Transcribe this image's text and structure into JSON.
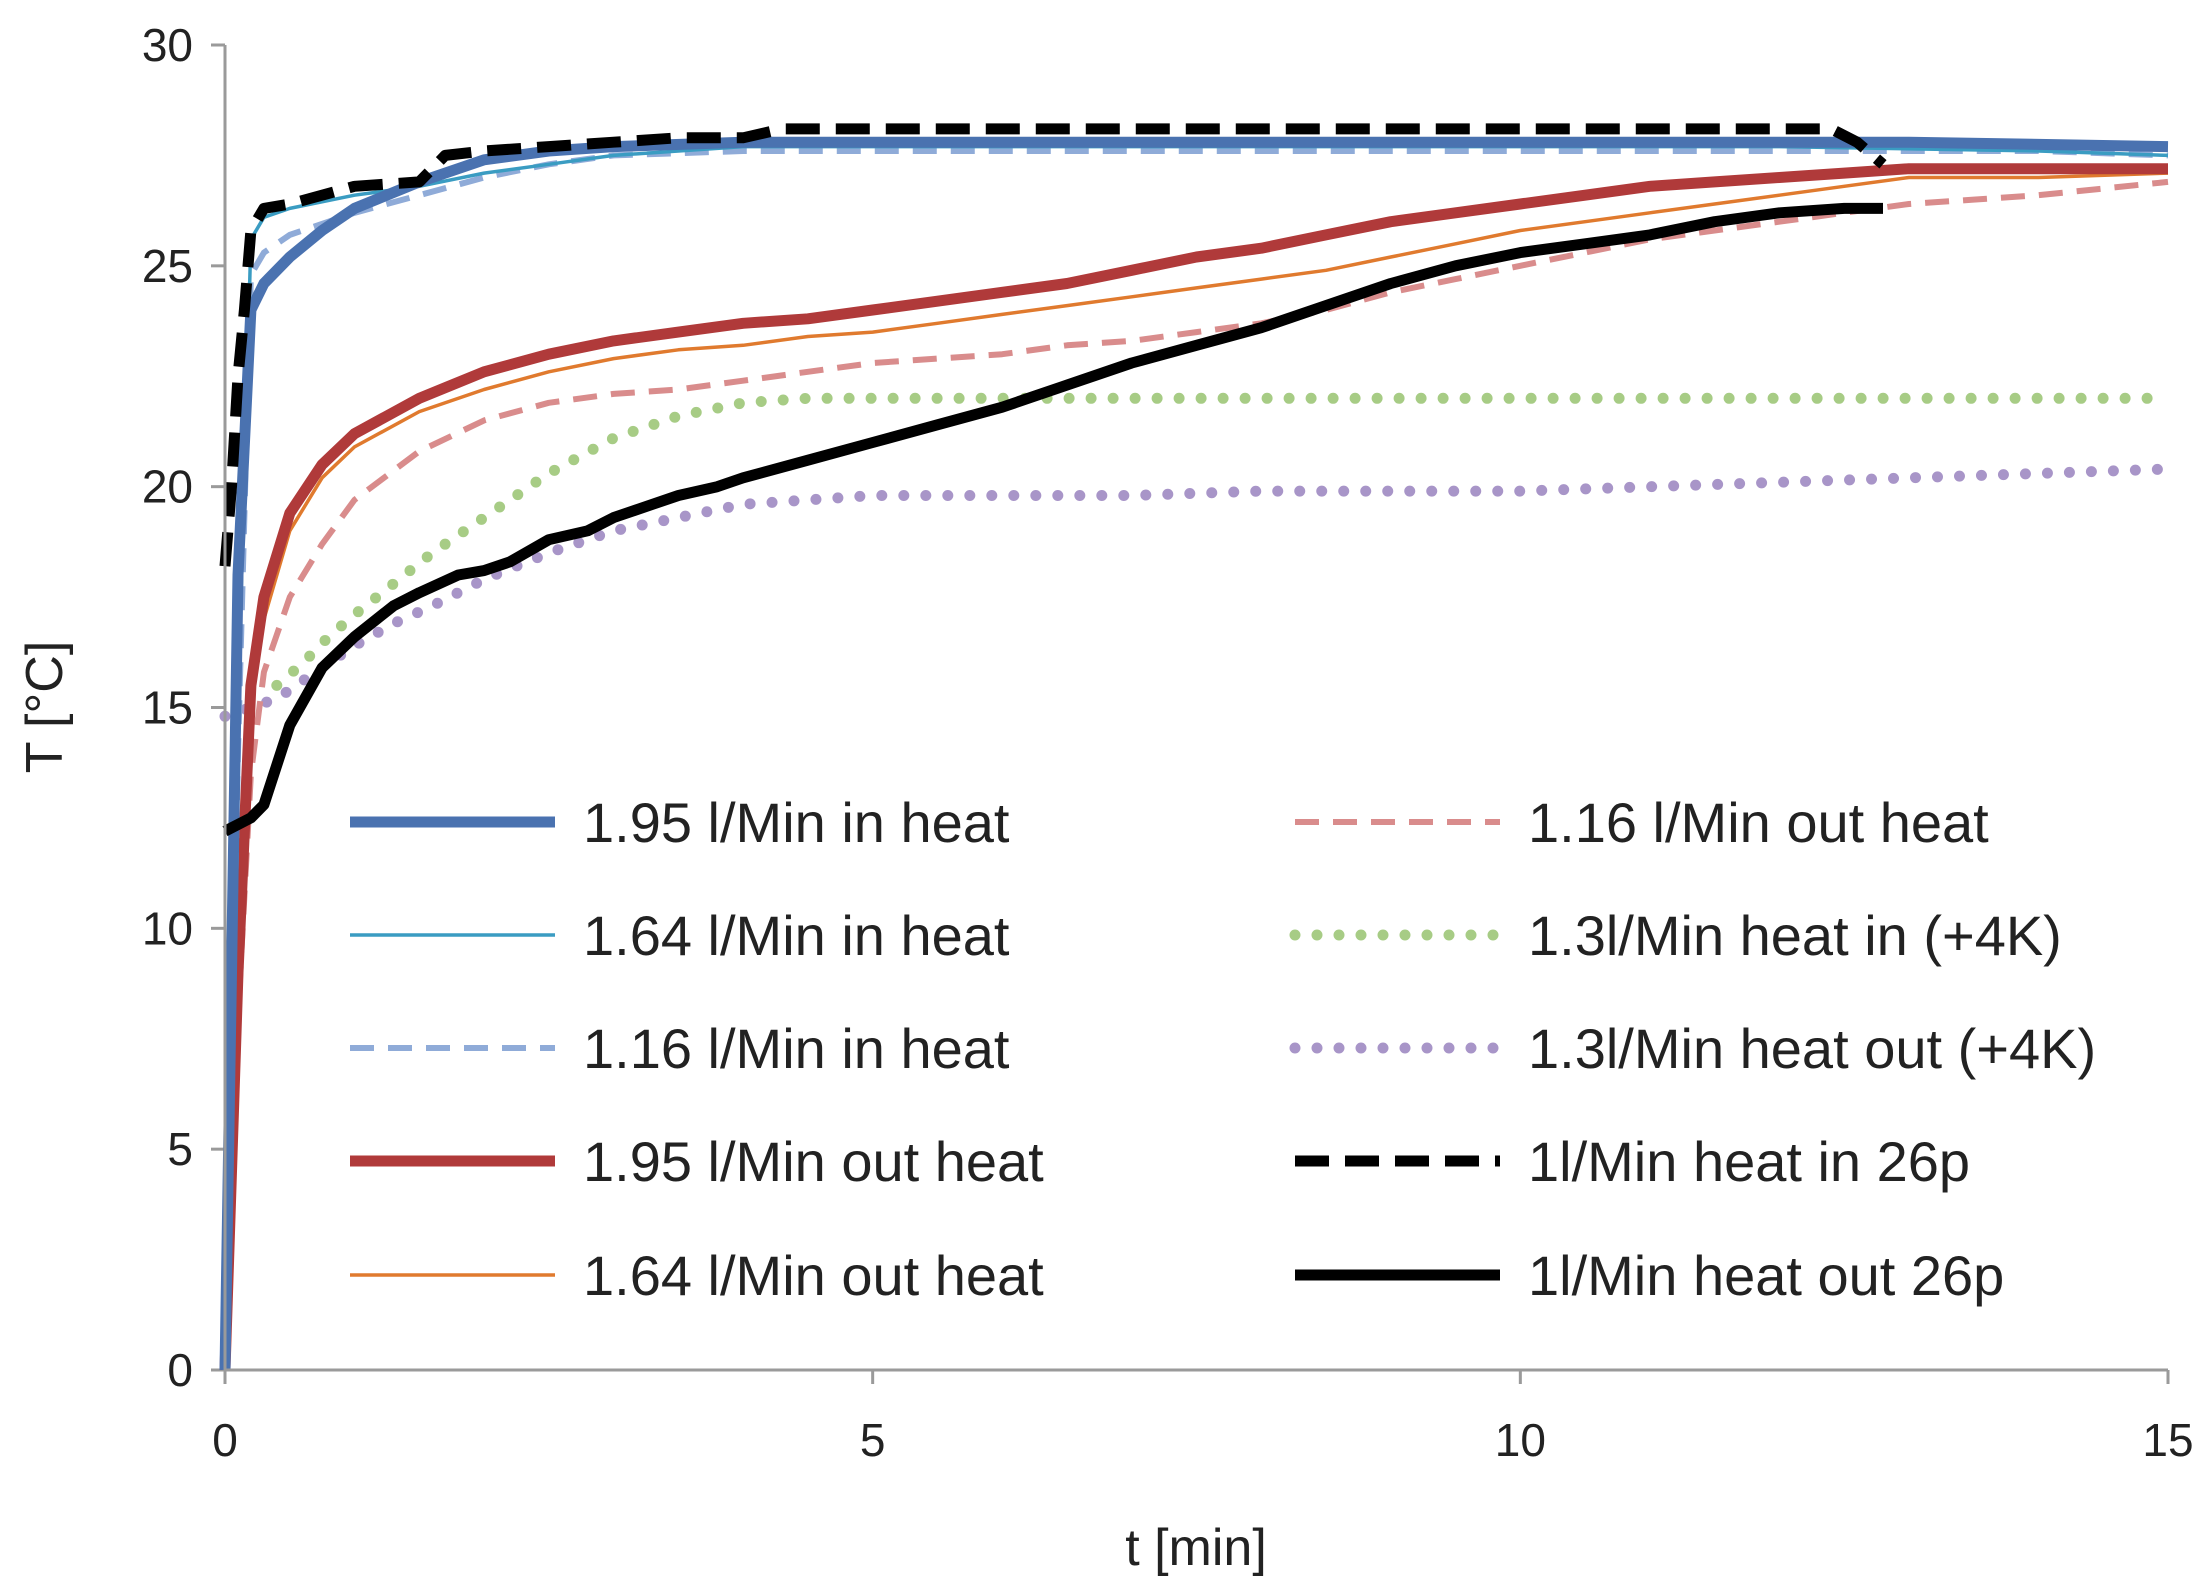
{
  "chart_data": {
    "type": "line",
    "title": "",
    "xlabel": "t [min]",
    "ylabel": "T [°C]",
    "xlim": [
      0,
      15
    ],
    "ylim": [
      0,
      30
    ],
    "xticks": [
      0,
      5,
      10,
      15
    ],
    "yticks": [
      0,
      5,
      10,
      15,
      20,
      25,
      30
    ],
    "xtick_labels": [
      "0",
      "5",
      "10",
      "15"
    ],
    "ytick_labels": [
      "0",
      "5",
      "10",
      "15",
      "20",
      "25",
      "30"
    ],
    "grid": false,
    "legend_position": "lower-right, two columns",
    "series": [
      {
        "name": "1.95 l/Min in heat",
        "color": "#4a72b0",
        "style": "solid",
        "weight": "heavy",
        "x": [
          0,
          0.1,
          0.2,
          0.3,
          0.5,
          0.75,
          1.0,
          1.5,
          2.0,
          2.5,
          3.0,
          4.0,
          5.0,
          6.0,
          8.0,
          10.0,
          12.0,
          13.0,
          15.0
        ],
        "y": [
          0,
          18,
          24,
          24.6,
          25.2,
          25.8,
          26.3,
          26.9,
          27.4,
          27.6,
          27.7,
          27.8,
          27.8,
          27.8,
          27.8,
          27.8,
          27.8,
          27.8,
          27.7
        ]
      },
      {
        "name": "1.64 l/Min in heat",
        "color": "#3a9cc2",
        "style": "solid",
        "weight": "thin",
        "x": [
          0,
          0.1,
          0.2,
          0.3,
          0.5,
          1.0,
          1.5,
          2.0,
          2.5,
          3.0,
          3.5,
          4.0,
          6.0,
          8.0,
          10.0,
          12.0,
          14.0,
          15.0
        ],
        "y": [
          0,
          15,
          25.6,
          26.1,
          26.3,
          26.6,
          26.8,
          27.1,
          27.3,
          27.5,
          27.6,
          27.7,
          27.7,
          27.7,
          27.7,
          27.7,
          27.6,
          27.5
        ]
      },
      {
        "name": "1.16 l/Min in heat",
        "color": "#8fabd8",
        "style": "dashed",
        "weight": "medium",
        "x": [
          0,
          0.1,
          0.2,
          0.3,
          0.5,
          1.0,
          1.5,
          2.0,
          2.5,
          3.0,
          4.0,
          6.0,
          8.0,
          10.0,
          12.0,
          14.0,
          15.0
        ],
        "y": [
          0,
          14,
          24.8,
          25.3,
          25.7,
          26.2,
          26.6,
          27.0,
          27.3,
          27.5,
          27.6,
          27.6,
          27.6,
          27.6,
          27.6,
          27.6,
          27.5
        ]
      },
      {
        "name": "1.95 l/Min out heat",
        "color": "#b03a3a",
        "style": "solid",
        "weight": "heavy",
        "x": [
          0,
          0.1,
          0.2,
          0.3,
          0.5,
          0.75,
          1.0,
          1.5,
          2.0,
          2.5,
          3.0,
          3.5,
          4.0,
          4.5,
          5.0,
          5.5,
          6.0,
          6.5,
          7.0,
          7.5,
          8.0,
          8.5,
          9.0,
          9.5,
          10.0,
          10.5,
          11.0,
          11.5,
          12.0,
          12.5,
          13.0,
          13.5,
          14.0,
          15.0
        ],
        "y": [
          0,
          9,
          15.5,
          17.5,
          19.4,
          20.5,
          21.2,
          22.0,
          22.6,
          23.0,
          23.3,
          23.5,
          23.7,
          23.8,
          24.0,
          24.2,
          24.4,
          24.6,
          24.9,
          25.2,
          25.4,
          25.7,
          26.0,
          26.2,
          26.4,
          26.6,
          26.8,
          26.9,
          27.0,
          27.1,
          27.2,
          27.2,
          27.2,
          27.2
        ]
      },
      {
        "name": "1.64 l/Min out heat",
        "color": "#e07a2e",
        "style": "solid",
        "weight": "thin",
        "x": [
          0,
          0.1,
          0.2,
          0.3,
          0.5,
          0.75,
          1.0,
          1.5,
          2.0,
          2.5,
          3.0,
          3.5,
          4.0,
          4.5,
          5.0,
          5.5,
          6.0,
          6.5,
          7.0,
          7.5,
          8.0,
          8.5,
          9.0,
          9.5,
          10.0,
          10.5,
          11.0,
          11.5,
          12.0,
          12.5,
          13.0,
          13.5,
          14.0,
          15.0
        ],
        "y": [
          0,
          8.5,
          15.0,
          17.0,
          19.0,
          20.2,
          20.9,
          21.7,
          22.2,
          22.6,
          22.9,
          23.1,
          23.2,
          23.4,
          23.5,
          23.7,
          23.9,
          24.1,
          24.3,
          24.5,
          24.7,
          24.9,
          25.2,
          25.5,
          25.8,
          26.0,
          26.2,
          26.4,
          26.6,
          26.8,
          27.0,
          27.0,
          27.0,
          27.1
        ]
      },
      {
        "name": "1.16 l/Min out heat",
        "color": "#d98c8c",
        "style": "dashed",
        "weight": "medium",
        "x": [
          0,
          0.1,
          0.2,
          0.3,
          0.5,
          0.75,
          1.0,
          1.5,
          2.0,
          2.5,
          3.0,
          3.5,
          4.0,
          4.5,
          5.0,
          5.5,
          6.0,
          6.5,
          7.0,
          7.5,
          8.0,
          8.5,
          9.0,
          9.5,
          10.0,
          10.5,
          11.0,
          11.5,
          12.0,
          12.5,
          13.0,
          13.5,
          14.0,
          15.0
        ],
        "y": [
          0,
          8,
          13.5,
          15.8,
          17.5,
          18.7,
          19.7,
          20.8,
          21.5,
          21.9,
          22.1,
          22.2,
          22.4,
          22.6,
          22.8,
          22.9,
          23.0,
          23.2,
          23.3,
          23.5,
          23.7,
          24.0,
          24.4,
          24.7,
          25.0,
          25.3,
          25.6,
          25.8,
          26.0,
          26.2,
          26.4,
          26.5,
          26.6,
          26.9
        ]
      },
      {
        "name": "1.3l/Min heat in (+4K)",
        "color": "#a7cc85",
        "style": "dotted",
        "weight": "medium",
        "x": [
          0.4,
          0.6,
          0.8,
          1.0,
          1.3,
          1.6,
          2.0,
          2.5,
          3.0,
          3.5,
          4.0,
          4.5,
          5.0,
          6.0,
          7.0,
          8.0,
          10.0,
          12.0,
          14.0,
          15.0
        ],
        "y": [
          15.5,
          16.0,
          16.6,
          17.1,
          17.8,
          18.5,
          19.3,
          20.3,
          21.1,
          21.6,
          21.9,
          22.0,
          22.0,
          22.0,
          22.0,
          22.0,
          22.0,
          22.0,
          22.0,
          22.0
        ]
      },
      {
        "name": "1.3l/Min heat out (+4K)",
        "color": "#a895c8",
        "style": "dotted",
        "weight": "medium",
        "x": [
          0,
          0.2,
          0.4,
          0.6,
          0.8,
          1.0,
          1.3,
          1.6,
          2.0,
          2.5,
          3.0,
          3.5,
          4.0,
          4.5,
          5.0,
          6.0,
          7.0,
          8.0,
          9.0,
          10.0,
          11.0,
          12.0,
          13.0,
          14.0,
          15.0
        ],
        "y": [
          14.8,
          15.0,
          15.2,
          15.6,
          16.0,
          16.4,
          16.9,
          17.3,
          17.9,
          18.5,
          19.0,
          19.3,
          19.6,
          19.7,
          19.8,
          19.8,
          19.8,
          19.9,
          19.9,
          19.9,
          20.0,
          20.1,
          20.2,
          20.3,
          20.4
        ]
      },
      {
        "name": "1l/Min heat in 26p",
        "color": "#000000",
        "style": "dashed",
        "weight": "heavy",
        "x": [
          0,
          0.05,
          0.1,
          0.15,
          0.2,
          0.3,
          0.5,
          1.0,
          1.5,
          1.7,
          2.0,
          2.5,
          3.0,
          3.5,
          4.0,
          4.3,
          4.6,
          5.0,
          6.0,
          7.0,
          8.0,
          9.0,
          10.0,
          11.0,
          12.0,
          12.4,
          12.6,
          12.8
        ],
        "y": [
          18.2,
          20,
          22.5,
          24,
          25.8,
          26.3,
          26.4,
          26.8,
          26.9,
          27.5,
          27.6,
          27.7,
          27.8,
          27.9,
          27.9,
          28.1,
          28.1,
          28.1,
          28.1,
          28.1,
          28.1,
          28.1,
          28.1,
          28.1,
          28.1,
          28.1,
          27.8,
          27.3
        ]
      },
      {
        "name": "1l/Min heat out 26p",
        "color": "#000000",
        "style": "solid",
        "weight": "heavy",
        "x": [
          0,
          0.2,
          0.3,
          0.5,
          0.75,
          1.0,
          1.3,
          1.5,
          1.8,
          2.0,
          2.2,
          2.5,
          2.8,
          3.0,
          3.3,
          3.5,
          3.8,
          4.0,
          4.5,
          5.0,
          5.5,
          6.0,
          6.5,
          7.0,
          7.5,
          8.0,
          8.5,
          9.0,
          9.5,
          10.0,
          10.5,
          11.0,
          11.5,
          12.0,
          12.5,
          12.8
        ],
        "y": [
          12.2,
          12.5,
          12.8,
          14.6,
          15.9,
          16.6,
          17.3,
          17.6,
          18.0,
          18.1,
          18.3,
          18.8,
          19.0,
          19.3,
          19.6,
          19.8,
          20.0,
          20.2,
          20.6,
          21.0,
          21.4,
          21.8,
          22.3,
          22.8,
          23.2,
          23.6,
          24.1,
          24.6,
          25.0,
          25.3,
          25.5,
          25.7,
          26.0,
          26.2,
          26.3,
          26.3
        ]
      }
    ]
  }
}
